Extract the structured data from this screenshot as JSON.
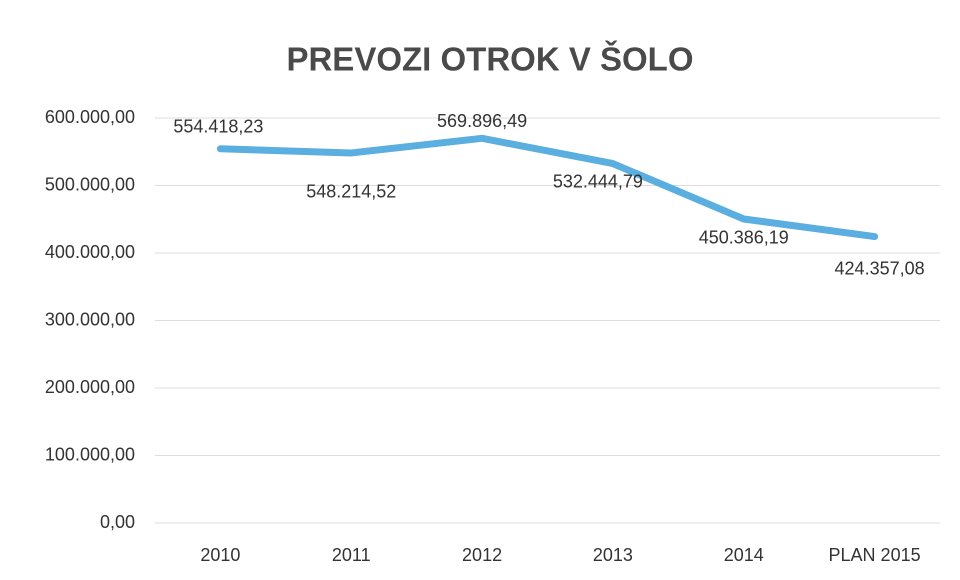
{
  "chart_data": {
    "type": "line",
    "title": "PREVOZI OTROK V ŠOLO",
    "categories": [
      "2010",
      "2011",
      "2012",
      "2013",
      "2014",
      "PLAN 2015"
    ],
    "values": [
      554418.23,
      548214.52,
      569896.49,
      532444.79,
      450386.19,
      424357.08
    ],
    "value_labels": [
      "554.418,23",
      "548.214,52",
      "569.896,49",
      "532.444,79",
      "450.386,19",
      "424.357,08"
    ],
    "color": "#5aaee0",
    "ylim": [
      0,
      600000
    ],
    "yticks": [
      {
        "value": 0,
        "label": "0,00"
      },
      {
        "value": 100000,
        "label": "100.000,00"
      },
      {
        "value": 200000,
        "label": "200.000,00"
      },
      {
        "value": 300000,
        "label": "300.000,00"
      },
      {
        "value": 400000,
        "label": "400.000,00"
      },
      {
        "value": 500000,
        "label": "500.000,00"
      },
      {
        "value": 600000,
        "label": "600.000,00"
      }
    ],
    "grid": true
  }
}
